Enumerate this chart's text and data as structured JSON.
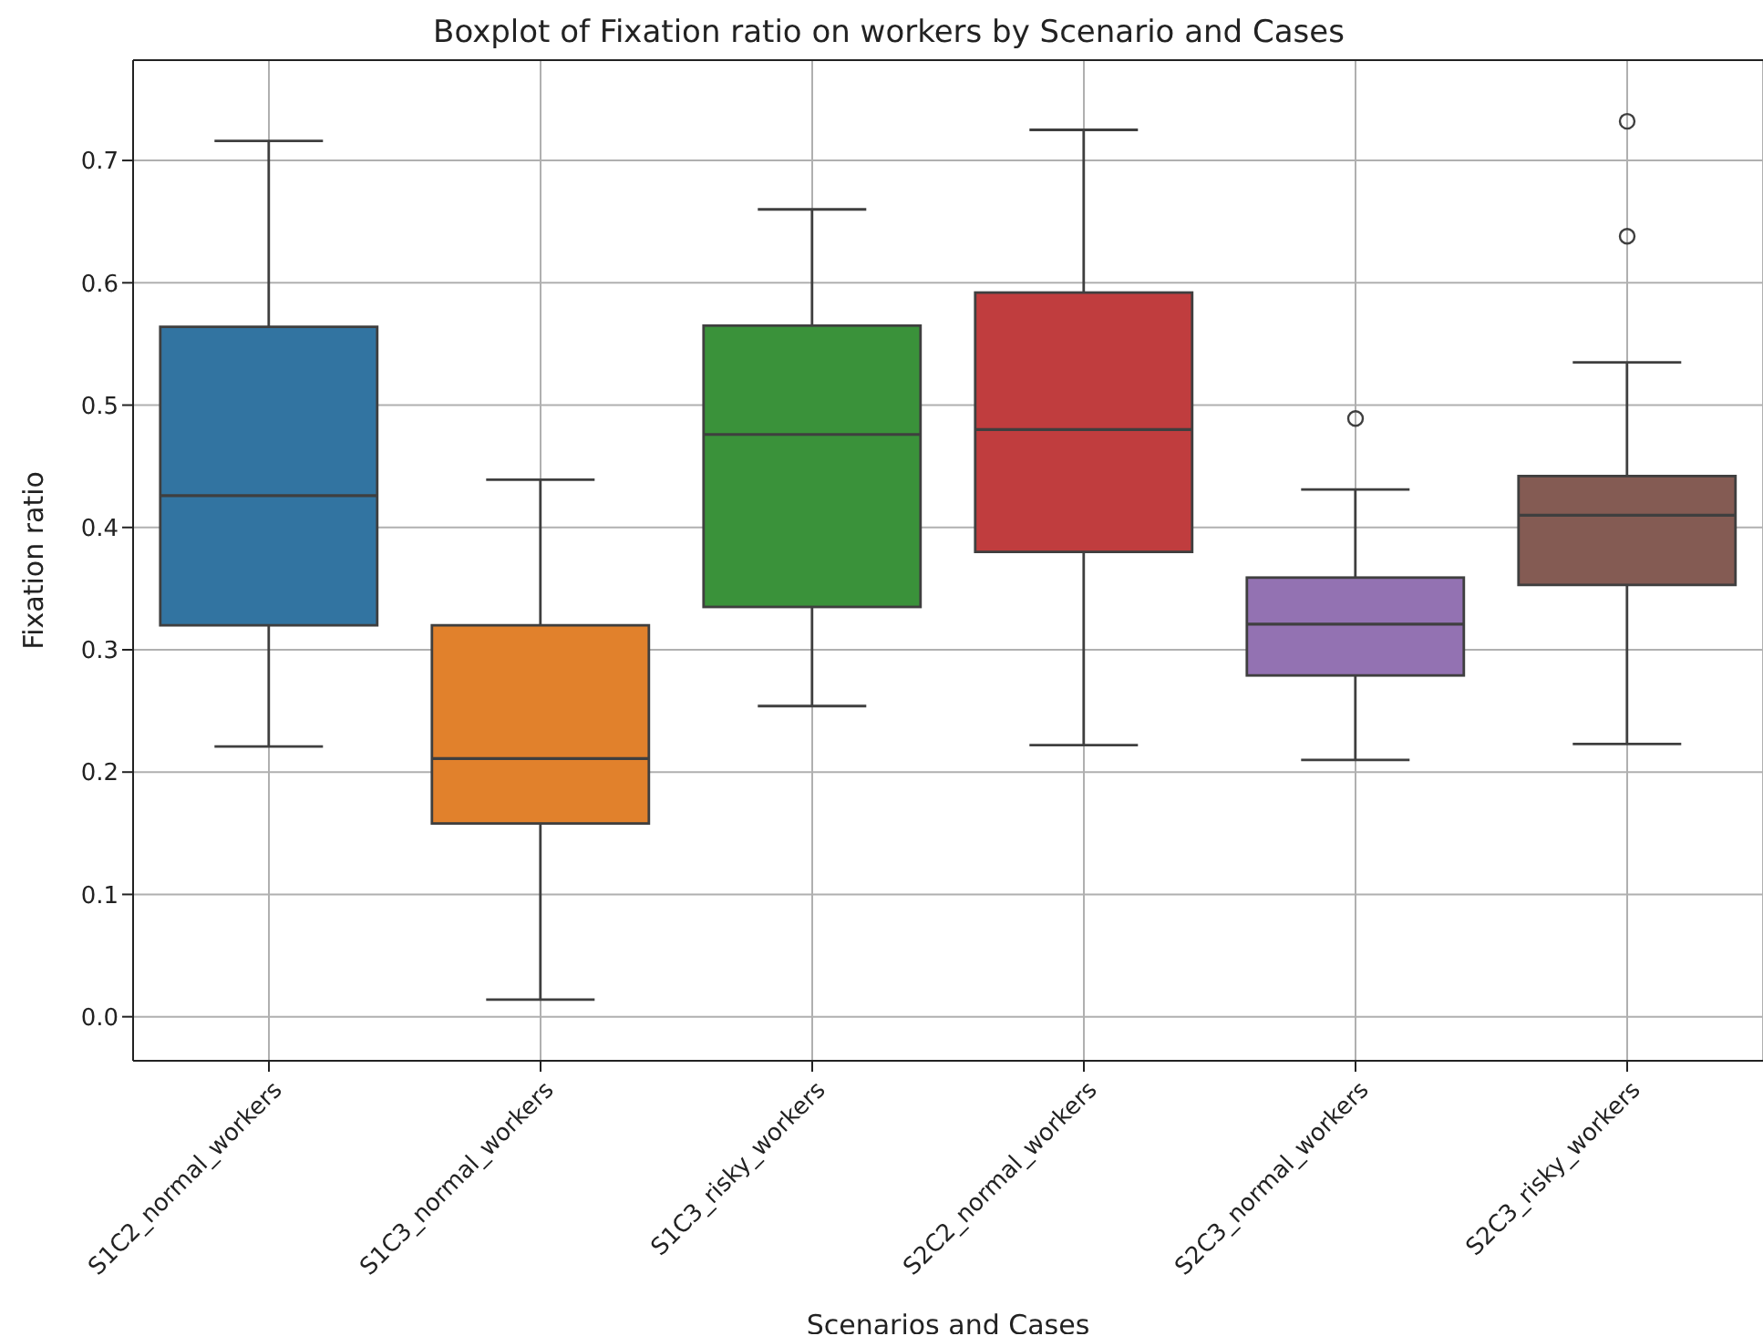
{
  "chart_data": {
    "type": "box",
    "title": "Boxplot of Fixation ratio on workers by Scenario and Cases",
    "xlabel": "Scenarios and Cases",
    "ylabel": "Fixation ratio",
    "categories": [
      "S1C2_normal_workers",
      "S1C3_normal_workers",
      "S1C3_risky_workers",
      "S2C2_normal_workers",
      "S2C3_normal_workers",
      "S2C3_risky_workers"
    ],
    "colors": [
      "#3274a1",
      "#e1812c",
      "#3a923a",
      "#c03d3e",
      "#9372b2",
      "#845b53"
    ],
    "boxes": [
      {
        "low": 0.221,
        "q1": 0.32,
        "median": 0.426,
        "q3": 0.564,
        "high": 0.716
      },
      {
        "low": 0.014,
        "q1": 0.158,
        "median": 0.211,
        "q3": 0.32,
        "high": 0.439
      },
      {
        "low": 0.254,
        "q1": 0.335,
        "median": 0.476,
        "q3": 0.565,
        "high": 0.66
      },
      {
        "low": 0.222,
        "q1": 0.38,
        "median": 0.48,
        "q3": 0.592,
        "high": 0.725
      },
      {
        "low": 0.21,
        "q1": 0.279,
        "median": 0.321,
        "q3": 0.359,
        "high": 0.431,
        "outliers": [
          0.489
        ]
      },
      {
        "low": 0.223,
        "q1": 0.353,
        "median": 0.41,
        "q3": 0.442,
        "high": 0.535,
        "outliers": [
          0.638,
          0.732
        ]
      }
    ],
    "ylim": [
      -0.036,
      0.782
    ],
    "yticks": [
      {
        "value": 0,
        "label": "0.0"
      },
      {
        "value": 0.1,
        "label": "0.1"
      },
      {
        "value": 0.2,
        "label": "0.2"
      },
      {
        "value": 0.3,
        "label": "0.3"
      },
      {
        "value": 0.4,
        "label": "0.4"
      },
      {
        "value": 0.5,
        "label": "0.5"
      },
      {
        "value": 0.6,
        "label": "0.6"
      },
      {
        "value": 0.7,
        "label": "0.7"
      }
    ],
    "grid": true,
    "legend": false
  }
}
